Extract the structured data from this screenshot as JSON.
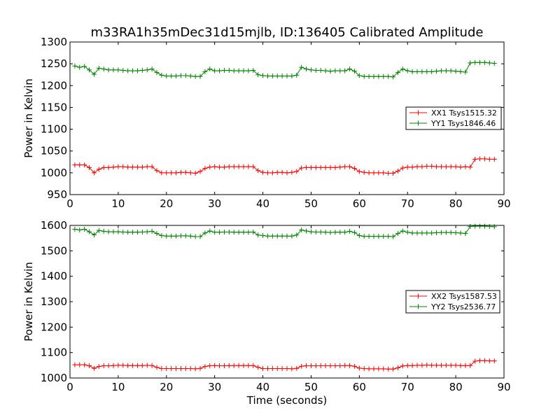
{
  "figure": {
    "title": "m33RA1h35mDec31d15mjlb, ID:136405 Calibrated Amplitude",
    "xlabel": "Time (seconds)"
  },
  "colors": {
    "xx": "#ff0000",
    "yy": "#008000"
  },
  "chart_data": [
    {
      "type": "line",
      "title": "m33RA1h35mDec31d15mjlb, ID:136405 Calibrated Amplitude",
      "xlabel": "",
      "ylabel": "Power in Kelvin",
      "xlim": [
        0,
        90
      ],
      "ylim": [
        950,
        1300
      ],
      "xticks": [
        0,
        10,
        20,
        30,
        40,
        50,
        60,
        70,
        80,
        90
      ],
      "yticks": [
        950,
        1000,
        1050,
        1100,
        1150,
        1200,
        1250,
        1300
      ],
      "grid": false,
      "legend_position": "center-right",
      "x": [
        1,
        2,
        3,
        4,
        5,
        6,
        7,
        8,
        9,
        10,
        11,
        12,
        13,
        14,
        15,
        16,
        17,
        18,
        19,
        20,
        21,
        22,
        23,
        24,
        25,
        26,
        27,
        28,
        29,
        30,
        31,
        32,
        33,
        34,
        35,
        36,
        37,
        38,
        39,
        40,
        41,
        42,
        43,
        44,
        45,
        46,
        47,
        48,
        49,
        50,
        51,
        52,
        53,
        54,
        55,
        56,
        57,
        58,
        59,
        60,
        61,
        62,
        63,
        64,
        65,
        66,
        67,
        68,
        69,
        70,
        71,
        72,
        73,
        74,
        75,
        76,
        77,
        78,
        79,
        80,
        81,
        82,
        83,
        84,
        85,
        86,
        87,
        88
      ],
      "series": [
        {
          "name": "XX1 Tsys1515.32",
          "color": "#ff0000",
          "values": [
            1018,
            1018,
            1018,
            1012,
            1000,
            1008,
            1012,
            1012,
            1013,
            1014,
            1014,
            1013,
            1013,
            1013,
            1013,
            1014,
            1014,
            1005,
            1000,
            1000,
            1000,
            1000,
            1001,
            1001,
            1000,
            999,
            1003,
            1010,
            1013,
            1014,
            1013,
            1013,
            1014,
            1014,
            1014,
            1014,
            1014,
            1014,
            1005,
            1001,
            1000,
            1000,
            1001,
            1001,
            1000,
            1001,
            1003,
            1011,
            1012,
            1012,
            1012,
            1012,
            1012,
            1012,
            1012,
            1013,
            1014,
            1014,
            1010,
            1003,
            1001,
            1000,
            1000,
            1000,
            1000,
            999,
            999,
            1004,
            1011,
            1013,
            1013,
            1014,
            1014,
            1015,
            1015,
            1014,
            1014,
            1014,
            1014,
            1014,
            1013,
            1014,
            1013,
            1031,
            1032,
            1032,
            1031,
            1031
          ]
        },
        {
          "name": "YY1 Tsys1846.46",
          "color": "#008000",
          "values": [
            1245,
            1242,
            1244,
            1236,
            1226,
            1240,
            1238,
            1236,
            1236,
            1236,
            1235,
            1234,
            1234,
            1234,
            1235,
            1236,
            1238,
            1230,
            1224,
            1222,
            1222,
            1222,
            1223,
            1223,
            1222,
            1221,
            1221,
            1232,
            1238,
            1234,
            1234,
            1235,
            1235,
            1234,
            1234,
            1234,
            1234,
            1235,
            1225,
            1223,
            1222,
            1222,
            1222,
            1222,
            1222,
            1222,
            1224,
            1242,
            1238,
            1236,
            1235,
            1235,
            1234,
            1233,
            1234,
            1234,
            1234,
            1238,
            1233,
            1223,
            1221,
            1221,
            1221,
            1221,
            1221,
            1221,
            1220,
            1230,
            1238,
            1234,
            1232,
            1232,
            1232,
            1232,
            1232,
            1233,
            1234,
            1234,
            1234,
            1233,
            1232,
            1231,
            1252,
            1253,
            1253,
            1253,
            1252,
            1251
          ]
        }
      ]
    },
    {
      "type": "line",
      "title": "",
      "xlabel": "Time (seconds)",
      "ylabel": "Power in Kelvin",
      "xlim": [
        0,
        90
      ],
      "ylim": [
        1000,
        1600
      ],
      "xticks": [
        0,
        10,
        20,
        30,
        40,
        50,
        60,
        70,
        80,
        90
      ],
      "yticks": [
        1000,
        1100,
        1200,
        1300,
        1400,
        1500,
        1600
      ],
      "grid": false,
      "legend_position": "center-right",
      "x": [
        1,
        2,
        3,
        4,
        5,
        6,
        7,
        8,
        9,
        10,
        11,
        12,
        13,
        14,
        15,
        16,
        17,
        18,
        19,
        20,
        21,
        22,
        23,
        24,
        25,
        26,
        27,
        28,
        29,
        30,
        31,
        32,
        33,
        34,
        35,
        36,
        37,
        38,
        39,
        40,
        41,
        42,
        43,
        44,
        45,
        46,
        47,
        48,
        49,
        50,
        51,
        52,
        53,
        54,
        55,
        56,
        57,
        58,
        59,
        60,
        61,
        62,
        63,
        64,
        65,
        66,
        67,
        68,
        69,
        70,
        71,
        72,
        73,
        74,
        75,
        76,
        77,
        78,
        79,
        80,
        81,
        82,
        83,
        84,
        85,
        86,
        87,
        88
      ],
      "series": [
        {
          "name": "XX2 Tsys1587.53",
          "color": "#ff0000",
          "values": [
            1052,
            1052,
            1052,
            1048,
            1038,
            1045,
            1048,
            1048,
            1049,
            1050,
            1050,
            1049,
            1049,
            1049,
            1049,
            1050,
            1049,
            1042,
            1037,
            1037,
            1037,
            1037,
            1037,
            1037,
            1037,
            1036,
            1038,
            1045,
            1048,
            1049,
            1048,
            1048,
            1049,
            1049,
            1049,
            1049,
            1049,
            1049,
            1042,
            1037,
            1037,
            1037,
            1037,
            1037,
            1037,
            1036,
            1038,
            1046,
            1048,
            1048,
            1048,
            1048,
            1048,
            1048,
            1048,
            1048,
            1049,
            1049,
            1046,
            1039,
            1037,
            1036,
            1036,
            1036,
            1036,
            1035,
            1035,
            1040,
            1047,
            1049,
            1049,
            1050,
            1050,
            1051,
            1050,
            1050,
            1050,
            1050,
            1050,
            1050,
            1049,
            1049,
            1049,
            1066,
            1068,
            1068,
            1067,
            1067
          ]
        },
        {
          "name": "YY2 Tsys2536.77",
          "color": "#008000",
          "values": [
            1585,
            1582,
            1585,
            1575,
            1563,
            1580,
            1577,
            1575,
            1575,
            1575,
            1574,
            1573,
            1573,
            1573,
            1574,
            1575,
            1577,
            1568,
            1560,
            1558,
            1558,
            1558,
            1559,
            1559,
            1558,
            1556,
            1556,
            1570,
            1578,
            1573,
            1573,
            1574,
            1574,
            1573,
            1573,
            1573,
            1573,
            1574,
            1562,
            1560,
            1558,
            1558,
            1558,
            1558,
            1558,
            1558,
            1562,
            1582,
            1578,
            1575,
            1574,
            1574,
            1573,
            1572,
            1573,
            1573,
            1573,
            1577,
            1572,
            1560,
            1557,
            1557,
            1557,
            1557,
            1557,
            1557,
            1556,
            1568,
            1578,
            1573,
            1570,
            1570,
            1570,
            1570,
            1570,
            1571,
            1572,
            1572,
            1572,
            1571,
            1570,
            1568,
            1596,
            1597,
            1597,
            1597,
            1596,
            1595
          ]
        }
      ]
    }
  ]
}
